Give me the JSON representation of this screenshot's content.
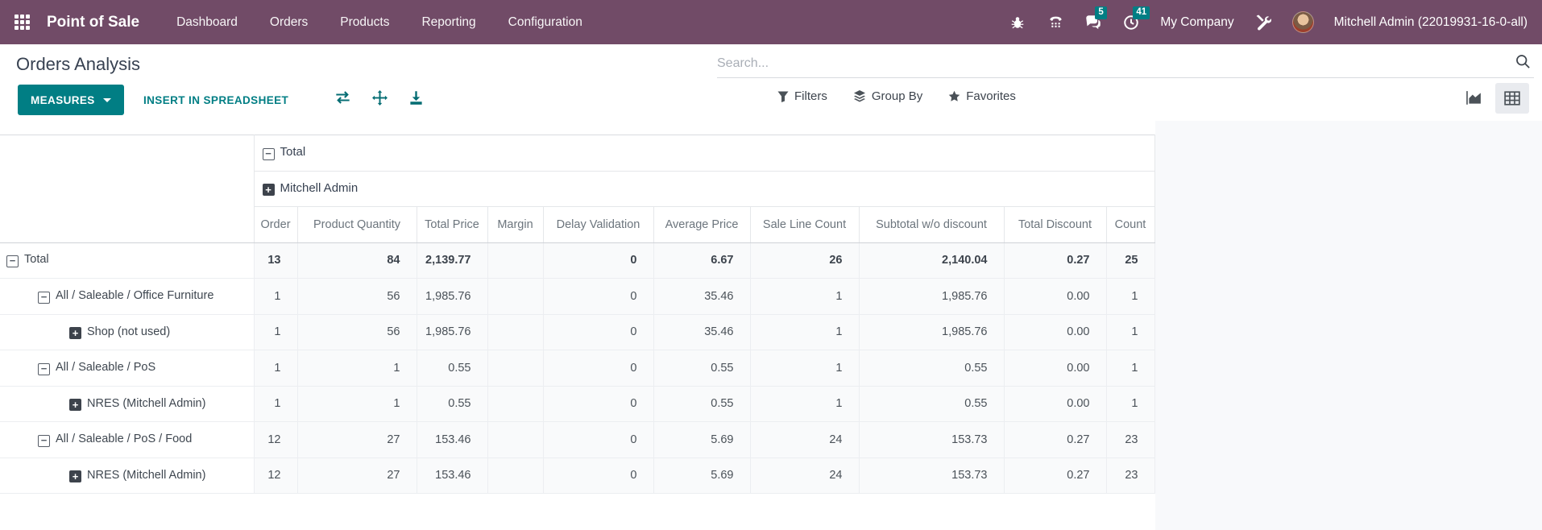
{
  "topbar": {
    "app_name": "Point of Sale",
    "menu": [
      "Dashboard",
      "Orders",
      "Products",
      "Reporting",
      "Configuration"
    ],
    "messages_badge": "5",
    "activities_badge": "41",
    "company": "My Company",
    "user": "Mitchell Admin (22019931-16-0-all)"
  },
  "control_panel": {
    "title": "Orders Analysis",
    "search_placeholder": "Search...",
    "measures_label": "MEASURES",
    "insert_label": "INSERT IN SPREADSHEET",
    "filters_label": "Filters",
    "group_by_label": "Group By",
    "favorites_label": "Favorites"
  },
  "pivot": {
    "col_group_header": "Total",
    "col_subgroup_header": "Mitchell Admin",
    "columns": [
      "Order",
      "Product Quantity",
      "Total Price",
      "Margin",
      "Delay Validation",
      "Average Price",
      "Sale Line Count",
      "Subtotal w/o discount",
      "Total Discount",
      "Count"
    ],
    "rows": [
      {
        "label": "Total",
        "level": 0,
        "expanded": true,
        "bold": true,
        "values": [
          "13",
          "84",
          "2,139.77",
          "",
          "0",
          "6.67",
          "26",
          "2,140.04",
          "0.27",
          "25"
        ]
      },
      {
        "label": "All / Saleable / Office Furniture",
        "level": 1,
        "expanded": true,
        "bold": false,
        "values": [
          "1",
          "56",
          "1,985.76",
          "",
          "0",
          "35.46",
          "1",
          "1,985.76",
          "0.00",
          "1"
        ]
      },
      {
        "label": "Shop (not used)",
        "level": 2,
        "expanded": false,
        "bold": false,
        "values": [
          "1",
          "56",
          "1,985.76",
          "",
          "0",
          "35.46",
          "1",
          "1,985.76",
          "0.00",
          "1"
        ]
      },
      {
        "label": "All / Saleable / PoS",
        "level": 1,
        "expanded": true,
        "bold": false,
        "values": [
          "1",
          "1",
          "0.55",
          "",
          "0",
          "0.55",
          "1",
          "0.55",
          "0.00",
          "1"
        ]
      },
      {
        "label": "NRES (Mitchell Admin)",
        "level": 2,
        "expanded": false,
        "bold": false,
        "values": [
          "1",
          "1",
          "0.55",
          "",
          "0",
          "0.55",
          "1",
          "0.55",
          "0.00",
          "1"
        ]
      },
      {
        "label": "All / Saleable / PoS / Food",
        "level": 1,
        "expanded": true,
        "bold": false,
        "values": [
          "12",
          "27",
          "153.46",
          "",
          "0",
          "5.69",
          "24",
          "153.73",
          "0.27",
          "23"
        ]
      },
      {
        "label": "NRES (Mitchell Admin)",
        "level": 2,
        "expanded": false,
        "bold": false,
        "values": [
          "12",
          "27",
          "153.46",
          "",
          "0",
          "5.69",
          "24",
          "153.73",
          "0.27",
          "23"
        ]
      }
    ]
  },
  "colors": {
    "topbar": "#714B67",
    "accent": "#017e84",
    "badge": "#017e84"
  }
}
